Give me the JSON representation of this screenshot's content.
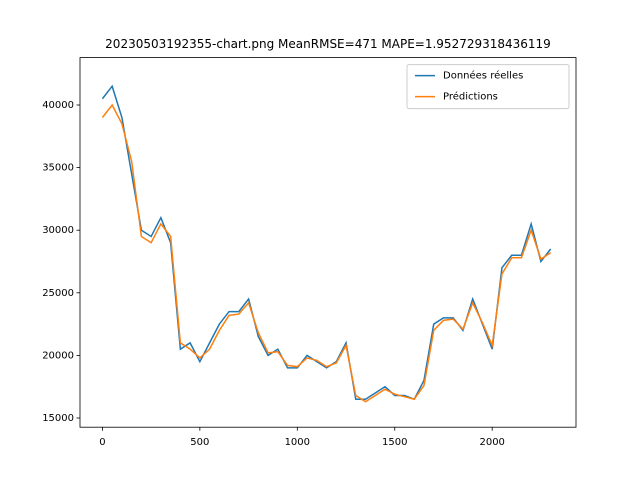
{
  "chart_data": {
    "type": "line",
    "title": "20230503192355-chart.png MeanRMSE=471 MAPE=1.952729318436119",
    "x": [
      0,
      50,
      100,
      150,
      200,
      250,
      300,
      350,
      400,
      450,
      500,
      550,
      600,
      650,
      700,
      750,
      800,
      850,
      900,
      950,
      1000,
      1050,
      1100,
      1150,
      1200,
      1250,
      1300,
      1350,
      1400,
      1450,
      1500,
      1550,
      1600,
      1650,
      1700,
      1750,
      1800,
      1850,
      1900,
      1950,
      2000,
      2050,
      2100,
      2150,
      2200,
      2250,
      2300
    ],
    "series": [
      {
        "name": "Données réelles",
        "color": "#1f77b4",
        "values": [
          40500,
          41500,
          39000,
          34500,
          30000,
          29500,
          31000,
          29000,
          20500,
          21000,
          19500,
          21000,
          22500,
          23500,
          23500,
          24500,
          21500,
          20000,
          20500,
          19000,
          19000,
          20000,
          19500,
          19000,
          19500,
          21000,
          16500,
          16500,
          17000,
          17500,
          16800,
          16800,
          16500,
          18000,
          22500,
          23000,
          23000,
          22000,
          24500,
          22500,
          20500,
          27000,
          28000,
          28000,
          30500,
          27500,
          28500
        ]
      },
      {
        "name": "Prédictions",
        "color": "#ff7f0e",
        "values": [
          39000,
          40000,
          38500,
          35500,
          29500,
          29000,
          30500,
          29500,
          21000,
          20500,
          19800,
          20500,
          22000,
          23200,
          23300,
          24200,
          21800,
          20200,
          20300,
          19200,
          19100,
          19800,
          19600,
          19100,
          19400,
          20800,
          16800,
          16300,
          16800,
          17300,
          16900,
          16700,
          16500,
          17600,
          22000,
          22800,
          22900,
          22100,
          24200,
          22600,
          20800,
          26500,
          27800,
          27800,
          30000,
          27700,
          28200
        ]
      }
    ],
    "xlim": [
      -115,
      2430
    ],
    "ylim": [
      14265,
      43786
    ],
    "xticks": [
      0,
      500,
      1000,
      1500,
      2000
    ],
    "yticks": [
      15000,
      20000,
      25000,
      30000,
      35000,
      40000
    ],
    "legend": "upper right"
  }
}
